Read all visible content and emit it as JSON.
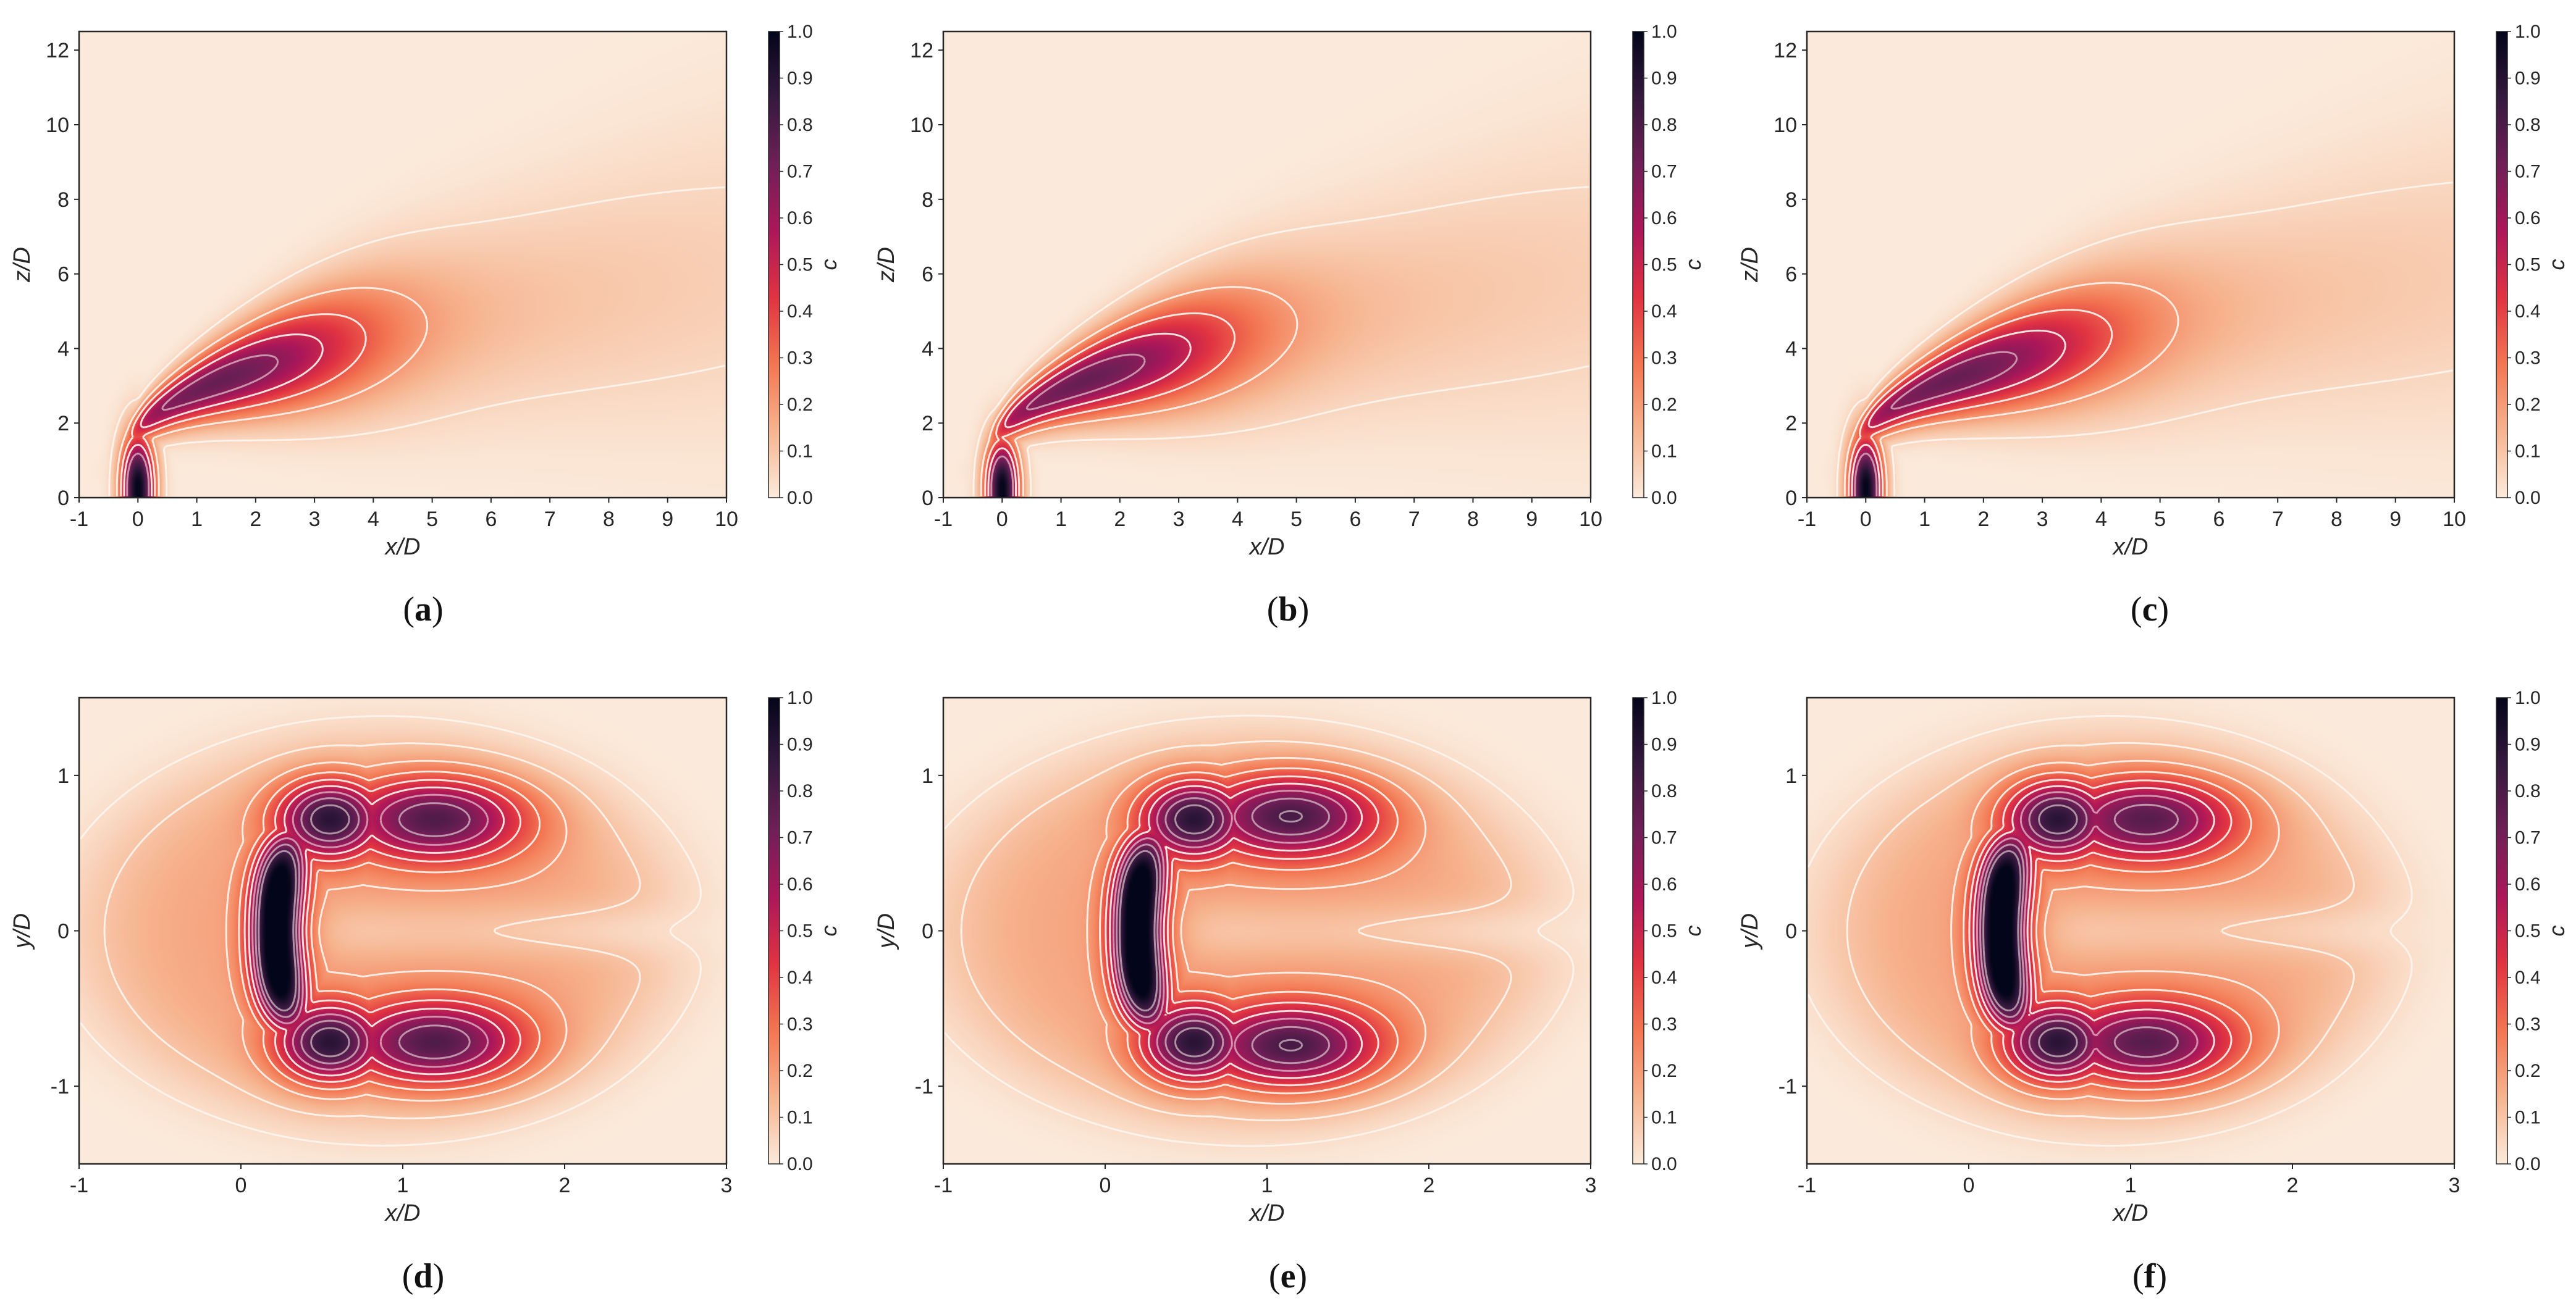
{
  "chart_data": [
    {
      "panel": "a",
      "type": "heatmap",
      "view": "side",
      "caption_letter": "a",
      "xlabel": "x/D",
      "ylabel": "z/D",
      "xlim": [
        -1,
        10
      ],
      "ylim": [
        0,
        12.5
      ],
      "xticks": [
        -1,
        0,
        1,
        2,
        3,
        4,
        5,
        6,
        7,
        8,
        9,
        10
      ],
      "yticks": [
        0,
        2,
        4,
        6,
        8,
        10,
        12
      ],
      "colorbar": {
        "label": "c",
        "range": [
          0.0,
          1.0
        ],
        "ticks": [
          "0.0",
          "0.1",
          "0.2",
          "0.3",
          "0.4",
          "0.5",
          "0.6",
          "0.7",
          "0.8",
          "0.9",
          "1.0"
        ]
      },
      "colormap": [
        "#fbeadb",
        "#f6b48f",
        "#f37651",
        "#e13342",
        "#ad1759",
        "#701f57",
        "#35193e",
        "#03051a"
      ],
      "contour_levels": [
        0.05,
        0.2,
        0.35,
        0.5,
        0.65
      ],
      "plume": {
        "spread": 0.38,
        "length": 1.0,
        "core_height": 0.6
      }
    },
    {
      "panel": "b",
      "type": "heatmap",
      "view": "side",
      "caption_letter": "b",
      "xlabel": "x/D",
      "ylabel": "z/D",
      "xlim": [
        -1,
        10
      ],
      "ylim": [
        0,
        12.5
      ],
      "xticks": [
        -1,
        0,
        1,
        2,
        3,
        4,
        5,
        6,
        7,
        8,
        9,
        10
      ],
      "yticks": [
        0,
        2,
        4,
        6,
        8,
        10,
        12
      ],
      "colorbar": {
        "label": "c",
        "range": [
          0.0,
          1.0
        ],
        "ticks": [
          "0.0",
          "0.1",
          "0.2",
          "0.3",
          "0.4",
          "0.5",
          "0.6",
          "0.7",
          "0.8",
          "0.9",
          "1.0"
        ]
      },
      "colormap": [
        "#fbeadb",
        "#f6b48f",
        "#f37651",
        "#e13342",
        "#ad1759",
        "#701f57",
        "#35193e",
        "#03051a"
      ],
      "contour_levels": [
        0.05,
        0.2,
        0.35,
        0.5,
        0.65
      ],
      "plume": {
        "spread": 0.37,
        "length": 1.02,
        "core_height": 0.55
      }
    },
    {
      "panel": "c",
      "type": "heatmap",
      "view": "side",
      "caption_letter": "c",
      "xlabel": "x/D",
      "ylabel": "z/D",
      "xlim": [
        -1,
        10
      ],
      "ylim": [
        0,
        12.5
      ],
      "xticks": [
        -1,
        0,
        1,
        2,
        3,
        4,
        5,
        6,
        7,
        8,
        9,
        10
      ],
      "yticks": [
        0,
        2,
        4,
        6,
        8,
        10,
        12
      ],
      "colorbar": {
        "label": "c",
        "range": [
          0.0,
          1.0
        ],
        "ticks": [
          "0.0",
          "0.1",
          "0.2",
          "0.3",
          "0.4",
          "0.5",
          "0.6",
          "0.7",
          "0.8",
          "0.9",
          "1.0"
        ]
      },
      "colormap": [
        "#fbeadb",
        "#f6b48f",
        "#f37651",
        "#e13342",
        "#ad1759",
        "#701f57",
        "#35193e",
        "#03051a"
      ],
      "contour_levels": [
        0.05,
        0.2,
        0.35,
        0.5,
        0.65
      ],
      "plume": {
        "spread": 0.36,
        "length": 1.08,
        "core_height": 0.6
      }
    },
    {
      "panel": "d",
      "type": "heatmap",
      "view": "top",
      "caption_letter": "d",
      "xlabel": "x/D",
      "ylabel": "y/D",
      "xlim": [
        -1,
        3
      ],
      "ylim": [
        -1.5,
        1.5
      ],
      "xticks": [
        -1,
        0,
        1,
        2,
        3
      ],
      "yticks": [
        -1,
        0,
        1
      ],
      "colorbar": {
        "label": "c",
        "range": [
          0.0,
          1.0
        ],
        "ticks": [
          "0.0",
          "0.1",
          "0.2",
          "0.3",
          "0.4",
          "0.5",
          "0.6",
          "0.7",
          "0.8",
          "0.9",
          "1.0"
        ]
      },
      "colormap": [
        "#fbeadb",
        "#f6b48f",
        "#f37651",
        "#e13342",
        "#ad1759",
        "#701f57",
        "#35193e",
        "#03051a"
      ],
      "contour_levels": [
        0.03,
        0.1,
        0.2,
        0.3,
        0.4,
        0.5,
        0.6,
        0.7,
        0.8
      ],
      "lobes": {
        "lobe_x": 1.2,
        "lobe_y": 0.72,
        "lobe_amp": 0.62,
        "wall_x": 0.22,
        "wall_amp": 1.0,
        "reach": 2.35
      }
    },
    {
      "panel": "e",
      "type": "heatmap",
      "view": "top",
      "caption_letter": "e",
      "xlabel": "x/D",
      "ylabel": "y/D",
      "xlim": [
        -1,
        3
      ],
      "ylim": [
        -1.5,
        1.5
      ],
      "xticks": [
        -1,
        0,
        1,
        2,
        3
      ],
      "yticks": [
        -1,
        0,
        1
      ],
      "colorbar": {
        "label": "c",
        "range": [
          0.0,
          1.0
        ],
        "ticks": [
          "0.0",
          "0.1",
          "0.2",
          "0.3",
          "0.4",
          "0.5",
          "0.6",
          "0.7",
          "0.8",
          "0.9",
          "1.0"
        ]
      },
      "colormap": [
        "#fbeadb",
        "#f6b48f",
        "#f37651",
        "#e13342",
        "#ad1759",
        "#701f57",
        "#35193e",
        "#03051a"
      ],
      "contour_levels": [
        0.03,
        0.1,
        0.2,
        0.3,
        0.4,
        0.5,
        0.6,
        0.7,
        0.8
      ],
      "lobes": {
        "lobe_x": 1.15,
        "lobe_y": 0.74,
        "lobe_amp": 0.64,
        "wall_x": 0.2,
        "wall_amp": 1.0,
        "reach": 2.4
      }
    },
    {
      "panel": "f",
      "type": "heatmap",
      "view": "top",
      "caption_letter": "f",
      "xlabel": "x/D",
      "ylabel": "y/D",
      "xlim": [
        -1,
        3
      ],
      "ylim": [
        -1.5,
        1.5
      ],
      "xticks": [
        -1,
        0,
        1,
        2,
        3
      ],
      "yticks": [
        -1,
        0,
        1
      ],
      "colorbar": {
        "label": "c",
        "range": [
          0.0,
          1.0
        ],
        "ticks": [
          "0.0",
          "0.1",
          "0.2",
          "0.3",
          "0.4",
          "0.5",
          "0.6",
          "0.7",
          "0.8",
          "0.9",
          "1.0"
        ]
      },
      "colormap": [
        "#fbeadb",
        "#f6b48f",
        "#f37651",
        "#e13342",
        "#ad1759",
        "#701f57",
        "#35193e",
        "#03051a"
      ],
      "contour_levels": [
        0.03,
        0.1,
        0.2,
        0.3,
        0.4,
        0.5,
        0.6,
        0.7,
        0.8
      ],
      "lobes": {
        "lobe_x": 1.1,
        "lobe_y": 0.72,
        "lobe_amp": 0.6,
        "wall_x": 0.2,
        "wall_amp": 1.0,
        "reach": 2.25
      }
    }
  ]
}
